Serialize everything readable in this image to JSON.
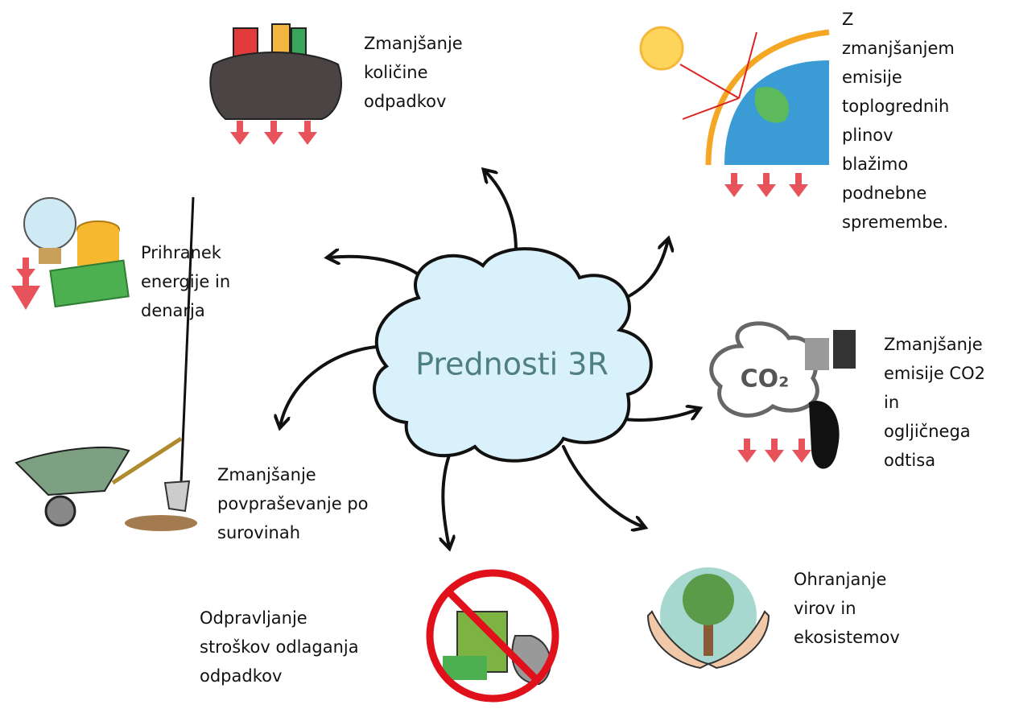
{
  "center": {
    "label": "Prednosti 3R"
  },
  "nodes": [
    {
      "lines": [
        "Zmanjšanje",
        "količine",
        "odpadkov"
      ]
    },
    {
      "lines": [
        "Z",
        "zmanjšanjem",
        "emisije",
        "toplogrednih",
        "plinov",
        "blažimo",
        "podnebne",
        "spremembe."
      ]
    },
    {
      "lines": [
        "Prihranek",
        "energije in",
        "denarja"
      ]
    },
    {
      "lines": [
        "Zmanjšanje",
        "emisije CO2",
        "in",
        "ogljičnega",
        "odtisa"
      ],
      "icon_text": "CO₂"
    },
    {
      "lines": [
        "Zmanjšanje",
        "povpraševanje po",
        "surovinah"
      ]
    },
    {
      "lines": [
        "Ohranjanje",
        "virov in",
        "ekosistemov"
      ]
    },
    {
      "lines": [
        "Odpravljanje",
        "stroškov odlaganja",
        "odpadkov"
      ]
    }
  ]
}
